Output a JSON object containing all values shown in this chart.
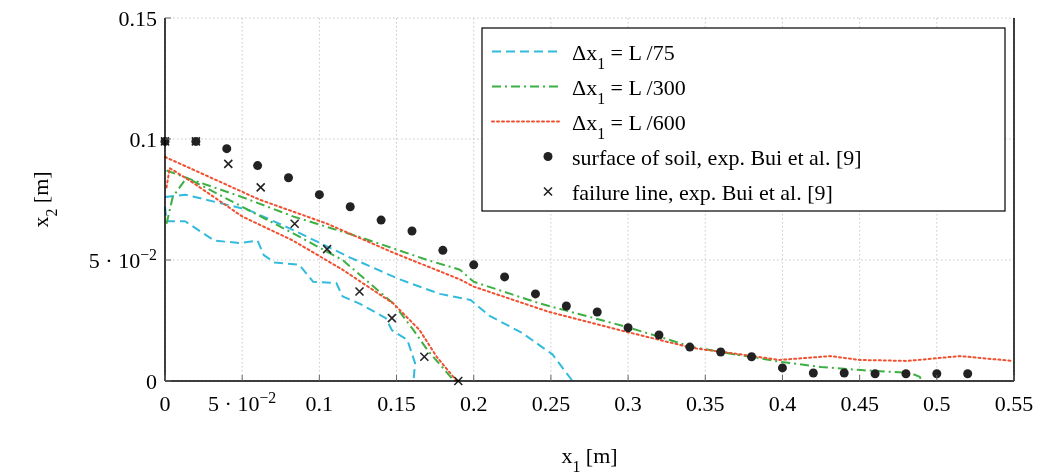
{
  "chart_data": {
    "type": "line",
    "xlabel": "x$_{1}$ [m]",
    "ylabel": "x$_{2}$ [m]",
    "xlim": [
      0,
      0.55
    ],
    "ylim": [
      0,
      0.15
    ],
    "xticks": [
      0,
      {
        "value": 0.05,
        "label": "5 · 10$^{−2}$"
      },
      0.1,
      0.15,
      0.2,
      0.25,
      0.3,
      0.35,
      0.4,
      0.45,
      0.5,
      0.55
    ],
    "yticks": [
      0,
      {
        "value": 0.05,
        "label": "5 · 10$^{−2}$"
      },
      0.1,
      0.15
    ],
    "grid": true,
    "legend": "top right",
    "series": [
      {
        "name": "Δx$_{1}$ = L /75",
        "color": "#33bbdd",
        "line_style": "dashed",
        "marker": "none",
        "x": [
          0,
          0.013,
          0.054,
          0.081,
          0.12,
          0.152,
          0.178,
          0.198,
          0.21,
          0.231,
          0.251,
          0.264,
          null,
          0,
          0.001,
          0.013,
          0.032,
          0.049,
          0.06,
          0.064,
          0.071,
          0.087,
          0.096,
          0.111,
          0.115,
          0.126,
          0.143,
          0.147,
          0.157,
          0.162,
          0.161
        ],
        "values": [
          0.076,
          0.077,
          0.0707,
          0.063,
          0.051,
          0.042,
          0.036,
          0.0335,
          0.027,
          0.02,
          0.011,
          0,
          null,
          0.072,
          0.066,
          0.066,
          0.058,
          0.057,
          0.058,
          0.052,
          0.049,
          0.048,
          0.041,
          0.0405,
          0.035,
          0.032,
          0.026,
          0.021,
          0.017,
          0.0074,
          0
        ]
      },
      {
        "name": "Δx$_{1}$ = L /300",
        "color": "#3cb043",
        "line_style": "dashdot",
        "marker": "none",
        "x": [
          0.001,
          0.018,
          0.05,
          0.083,
          0.126,
          0.17,
          0.191,
          0.2,
          0.243,
          0.301,
          0.342,
          0.372,
          0.36,
          0.399,
          0.425,
          0.451,
          0.483,
          0.489,
          0.49,
          null,
          0.001,
          0.005,
          0.014,
          0.05,
          0.083,
          0.115,
          0.148,
          0.161,
          0.17,
          0.185,
          0.188
        ],
        "values": [
          0.087,
          0.083,
          0.076,
          0.068,
          0.0595,
          0.05,
          0.046,
          0.041,
          0.032,
          0.022,
          0.014,
          0.0107,
          0.012,
          0.0079,
          0.0058,
          0.0045,
          0.0033,
          0.0017,
          0,
          null,
          0.065,
          0.076,
          0.084,
          0.072,
          0.061,
          0.05,
          0.032,
          0.021,
          0.0128,
          0.0017,
          0
        ]
      },
      {
        "name": "Δx$_{1}$ = L /600",
        "color": "#f05030",
        "line_style": "dotted",
        "marker": "none",
        "x": [
          0,
          0.061,
          0.105,
          0.148,
          0.191,
          0.2,
          0.249,
          0.301,
          0.342,
          0.366,
          0.398,
          0.431,
          0.45,
          0.481,
          0.515,
          0.549,
          null,
          0.001,
          0.003,
          0.018,
          0.05,
          0.083,
          0.115,
          0.148,
          0.165,
          0.176,
          0.189
        ],
        "values": [
          0.0926,
          0.075,
          0.065,
          0.053,
          0.042,
          0.039,
          0.0285,
          0.02,
          0.0136,
          0.0116,
          0.0087,
          0.0103,
          0.0087,
          0.0083,
          0.0103,
          0.0083,
          null,
          0.08,
          0.088,
          0.082,
          0.068,
          0.058,
          0.046,
          0.032,
          0.021,
          0.01,
          0
        ]
      },
      {
        "name": "surface of soil, exp. Bui et al. [9]",
        "color": "#222222",
        "type": "scatter",
        "marker": "circle",
        "x": [
          0,
          0.02,
          0.04,
          0.06,
          0.08,
          0.1,
          0.12,
          0.14,
          0.16,
          0.18,
          0.2,
          0.22,
          0.24,
          0.26,
          0.28,
          0.3,
          0.32,
          0.34,
          0.36,
          0.38,
          0.4,
          0.42,
          0.44,
          0.46,
          0.48,
          0.5,
          0.52
        ],
        "values": [
          0.099,
          0.099,
          0.096,
          0.089,
          0.084,
          0.077,
          0.072,
          0.0665,
          0.062,
          0.054,
          0.048,
          0.043,
          0.036,
          0.031,
          0.0285,
          0.022,
          0.019,
          0.014,
          0.012,
          0.01,
          0.0054,
          0.0033,
          0.0033,
          0.003,
          0.003,
          0.003,
          0.003
        ]
      },
      {
        "name": "failure line, exp. Bui et al. [9]",
        "color": "#222222",
        "type": "scatter",
        "marker": "cross",
        "x": [
          0,
          0.02,
          0.041,
          0.062,
          0.084,
          0.105,
          0.126,
          0.147,
          0.168,
          0.19
        ],
        "values": [
          0.099,
          0.099,
          0.0897,
          0.08,
          0.065,
          0.0545,
          0.037,
          0.026,
          0.01,
          0
        ]
      }
    ]
  }
}
